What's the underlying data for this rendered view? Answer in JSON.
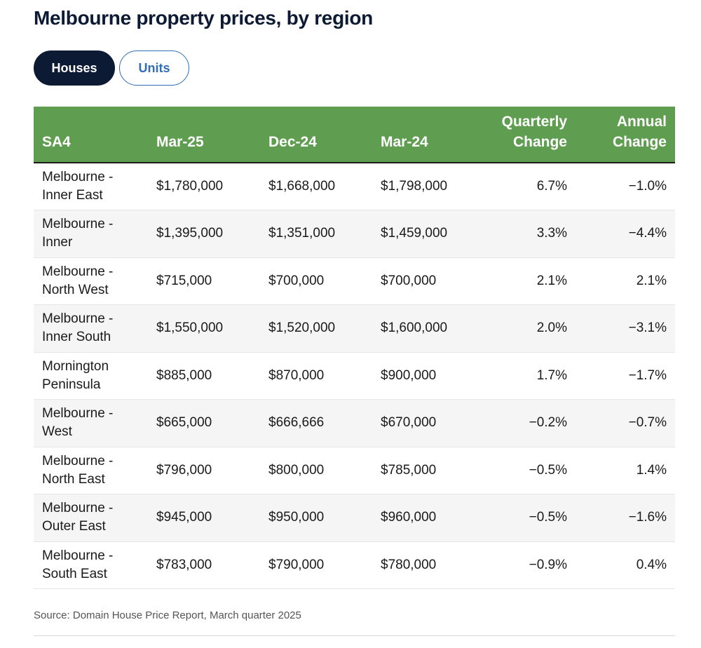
{
  "title": "Melbourne property prices, by region",
  "tabs": {
    "houses": "Houses",
    "units": "Units",
    "active": "Houses"
  },
  "colors": {
    "header_bg": "#5f9e50",
    "active_tab": "#0c1a33",
    "inactive_tab_accent": "#2f6db5"
  },
  "table": {
    "headers": {
      "sa4": "SA4",
      "mar25": "Mar-25",
      "dec24": "Dec-24",
      "mar24": "Mar-24",
      "quarterly_line1": "Quarterly",
      "quarterly_line2": "Change",
      "annual_line1": "Annual",
      "annual_line2": "Change"
    },
    "rows": [
      {
        "region_line1": "Melbourne -",
        "region_line2": "Inner East",
        "mar25": "$1,780,000",
        "dec24": "$1,668,000",
        "mar24": "$1,798,000",
        "quarterly": "6.7%",
        "annual": "−1.0%"
      },
      {
        "region_line1": "Melbourne -",
        "region_line2": "Inner",
        "mar25": "$1,395,000",
        "dec24": "$1,351,000",
        "mar24": "$1,459,000",
        "quarterly": "3.3%",
        "annual": "−4.4%"
      },
      {
        "region_line1": "Melbourne -",
        "region_line2": "North West",
        "mar25": "$715,000",
        "dec24": "$700,000",
        "mar24": "$700,000",
        "quarterly": "2.1%",
        "annual": "2.1%"
      },
      {
        "region_line1": "Melbourne -",
        "region_line2": "Inner South",
        "mar25": "$1,550,000",
        "dec24": "$1,520,000",
        "mar24": "$1,600,000",
        "quarterly": "2.0%",
        "annual": "−3.1%"
      },
      {
        "region_line1": "Mornington",
        "region_line2": "Peninsula",
        "mar25": "$885,000",
        "dec24": "$870,000",
        "mar24": "$900,000",
        "quarterly": "1.7%",
        "annual": "−1.7%"
      },
      {
        "region_line1": "Melbourne -",
        "region_line2": "West",
        "mar25": "$665,000",
        "dec24": "$666,666",
        "mar24": "$670,000",
        "quarterly": "−0.2%",
        "annual": "−0.7%"
      },
      {
        "region_line1": "Melbourne -",
        "region_line2": "North East",
        "mar25": "$796,000",
        "dec24": "$800,000",
        "mar24": "$785,000",
        "quarterly": "−0.5%",
        "annual": "1.4%"
      },
      {
        "region_line1": "Melbourne -",
        "region_line2": "Outer East",
        "mar25": "$945,000",
        "dec24": "$950,000",
        "mar24": "$960,000",
        "quarterly": "−0.5%",
        "annual": "−1.6%"
      },
      {
        "region_line1": "Melbourne -",
        "region_line2": "South East",
        "mar25": "$783,000",
        "dec24": "$790,000",
        "mar24": "$780,000",
        "quarterly": "−0.9%",
        "annual": "0.4%"
      }
    ]
  },
  "source": "Source: Domain House Price Report, March quarter 2025"
}
